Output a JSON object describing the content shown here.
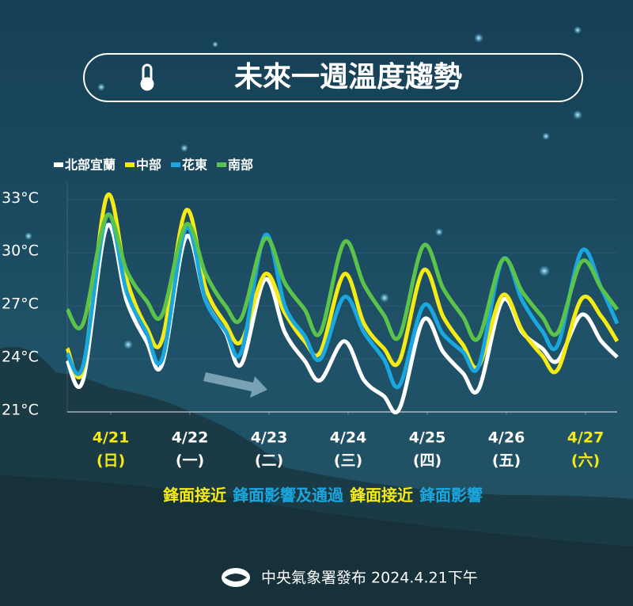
{
  "chart_data": {
    "type": "line",
    "title": "未來一週溫度趨勢",
    "x": [
      -0.05,
      0.15,
      0.45,
      0.7,
      0.95,
      1.15,
      1.45,
      1.7,
      1.95,
      2.15,
      2.45,
      2.7,
      2.95,
      3.15,
      3.45,
      3.7,
      3.95,
      4.15,
      4.45,
      4.7,
      4.95,
      5.15,
      5.45,
      5.7,
      5.95,
      6.15,
      6.45,
      6.7,
      6.9
    ],
    "series": [
      {
        "name": "北部宜蘭",
        "color": "#ffffff",
        "values": [
          23.9,
          22.8,
          31.5,
          27.3,
          25.0,
          23.7,
          30.9,
          27.3,
          25.5,
          23.7,
          28.5,
          25.5,
          23.9,
          22.8,
          25.0,
          22.8,
          21.9,
          21.2,
          26.2,
          24.4,
          23.2,
          22.3,
          27.3,
          25.5,
          24.6,
          23.9,
          26.5,
          25.0,
          24.1
        ]
      },
      {
        "name": "中部",
        "color": "#f5ea14",
        "values": [
          24.6,
          23.4,
          33.2,
          28.5,
          25.8,
          25.1,
          32.4,
          28.0,
          26.0,
          25.0,
          28.8,
          26.6,
          25.0,
          24.4,
          28.8,
          26.0,
          24.6,
          23.9,
          29.0,
          26.4,
          24.8,
          23.6,
          27.6,
          25.6,
          24.2,
          23.4,
          27.4,
          26.4,
          25.0
        ]
      },
      {
        "name": "花東",
        "color": "#1aa7e0",
        "values": [
          24.3,
          23.6,
          32.1,
          27.8,
          25.5,
          24.0,
          31.4,
          27.3,
          25.6,
          24.4,
          31.0,
          27.0,
          25.3,
          24.0,
          27.5,
          25.5,
          24.0,
          22.5,
          27.0,
          25.4,
          24.4,
          23.6,
          29.6,
          27.3,
          25.6,
          24.8,
          30.1,
          28.0,
          26.0
        ]
      },
      {
        "name": "南部",
        "color": "#5cc34a",
        "values": [
          26.8,
          26.0,
          32.1,
          29.0,
          27.3,
          26.5,
          31.6,
          28.8,
          27.0,
          26.3,
          30.8,
          28.3,
          26.8,
          25.5,
          30.6,
          28.2,
          26.5,
          25.3,
          30.4,
          28.0,
          26.4,
          25.2,
          29.6,
          27.8,
          26.4,
          25.5,
          29.5,
          28.0,
          26.8
        ]
      }
    ],
    "xlim": [
      -0.05,
      6.9
    ],
    "xticks": [
      {
        "value": 0.5,
        "label": "4/21"
      },
      {
        "value": 1.5,
        "label": "4/22"
      },
      {
        "value": 2.5,
        "label": "4/23"
      },
      {
        "value": 3.5,
        "label": "4/24"
      },
      {
        "value": 4.5,
        "label": "4/25"
      },
      {
        "value": 5.5,
        "label": "4/26"
      },
      {
        "value": 6.5,
        "label": "4/27"
      }
    ],
    "xtick_sublabels": [
      "(日)",
      "(一)",
      "(二)",
      "(三)",
      "(四)",
      "(五)",
      "(六)"
    ],
    "xtick_colors": [
      "#f5ea14",
      "#ffffff",
      "#ffffff",
      "#ffffff",
      "#ffffff",
      "#ffffff",
      "#f5ea14"
    ],
    "ylim": [
      21,
      34
    ],
    "yticks": [
      {
        "value": 21,
        "label": "21°C"
      },
      {
        "value": 24,
        "label": "24°C"
      },
      {
        "value": 27,
        "label": "27°C"
      },
      {
        "value": 30,
        "label": "30°C"
      },
      {
        "value": 33,
        "label": "33°C"
      }
    ],
    "grid": true,
    "annotations": [
      {
        "text": "鋒面接近",
        "color": "#f5ea14"
      },
      {
        "text": "鋒面影響及通過",
        "color": "#1aa7e0"
      },
      {
        "text": "鋒面接近",
        "color": "#f5ea14"
      },
      {
        "text": "鋒面影響",
        "color": "#1aa7e0"
      }
    ],
    "source": "中央氣象署發布 2024.4.21下午"
  }
}
